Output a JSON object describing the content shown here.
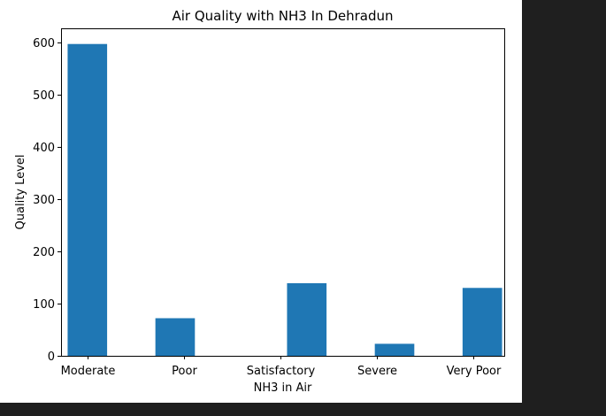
{
  "chart_data": {
    "type": "bar",
    "title": "Air Quality with NH3 In Dehradun",
    "xlabel": "NH3 in Air",
    "ylabel": "Quality Level",
    "categories": [
      "Moderate",
      "Poor",
      "Satisfactory",
      "Severe",
      "Very Poor"
    ],
    "bars": [
      {
        "x": 0,
        "value": 597
      },
      {
        "x": 1,
        "value": 72
      },
      {
        "x": 2.5,
        "value": 139
      },
      {
        "x": 3.5,
        "value": 23
      },
      {
        "x": 4.5,
        "value": 130
      }
    ],
    "xticks": [
      {
        "x": 0,
        "label": "Moderate"
      },
      {
        "x": 1.1,
        "label": "Poor"
      },
      {
        "x": 2.2,
        "label": "Satisfactory"
      },
      {
        "x": 3.3,
        "label": "Severe"
      },
      {
        "x": 4.4,
        "label": "Very Poor"
      }
    ],
    "yticks": [
      0,
      100,
      200,
      300,
      400,
      500,
      600
    ],
    "xlim": [
      -0.3,
      4.75
    ],
    "ylim": [
      0,
      627
    ],
    "bar_color": "#1f77b4",
    "grid": false,
    "legend": false
  }
}
